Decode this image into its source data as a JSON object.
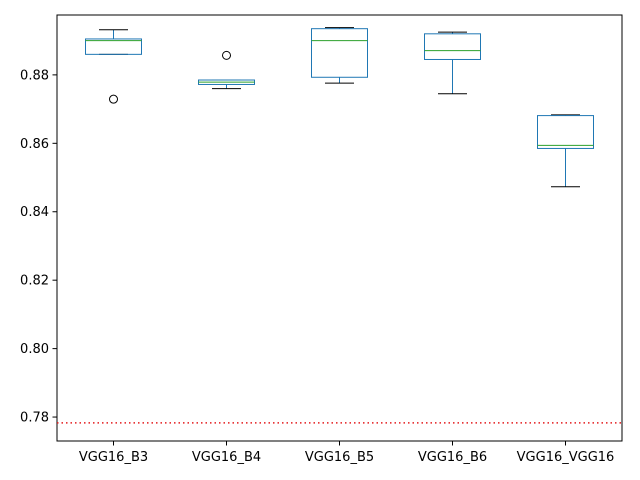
{
  "chart_data": {
    "type": "box",
    "title": "",
    "xlabel": "",
    "ylabel": "",
    "ylim": [
      0.773,
      0.8975
    ],
    "yticks": [
      0.78,
      0.8,
      0.82,
      0.84,
      0.86,
      0.88
    ],
    "ytick_labels": [
      "0.78",
      "0.80",
      "0.82",
      "0.84",
      "0.86",
      "0.88"
    ],
    "grid": false,
    "categories": [
      "VGG16_B3",
      "VGG16_B4",
      "VGG16_B5",
      "VGG16_B6",
      "VGG16_VGG16"
    ],
    "boxes": [
      {
        "whisker_low": 0.886,
        "q1": 0.886,
        "median": 0.89,
        "q3": 0.8905,
        "whisker_high": 0.8932,
        "outliers": [
          0.8729
        ]
      },
      {
        "whisker_low": 0.876,
        "q1": 0.8772,
        "median": 0.8779,
        "q3": 0.8785,
        "whisker_high": 0.8785,
        "outliers": [
          0.8857
        ]
      },
      {
        "whisker_low": 0.8776,
        "q1": 0.8793,
        "median": 0.89,
        "q3": 0.8935,
        "whisker_high": 0.8938,
        "outliers": []
      },
      {
        "whisker_low": 0.8745,
        "q1": 0.8845,
        "median": 0.8871,
        "q3": 0.892,
        "whisker_high": 0.8925,
        "outliers": []
      },
      {
        "whisker_low": 0.8473,
        "q1": 0.8585,
        "median": 0.8594,
        "q3": 0.8681,
        "whisker_high": 0.8683,
        "outliers": []
      }
    ],
    "reference_line": {
      "y": 0.7783,
      "style": "dotted"
    },
    "colors": {
      "box": "#1f77b4",
      "median": "#2ca02c",
      "whisker": "#000000",
      "reference": "#e41a1c",
      "axis": "#000000"
    }
  }
}
